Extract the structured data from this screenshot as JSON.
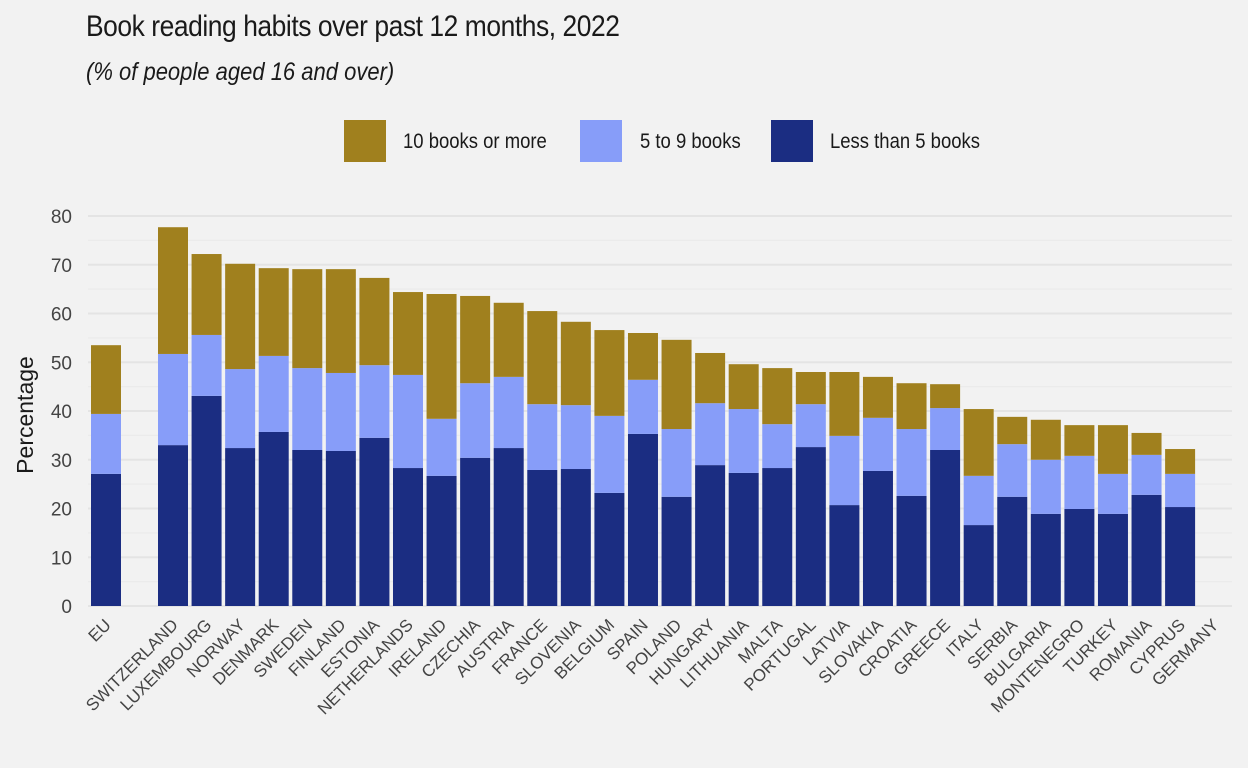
{
  "chart_data": {
    "type": "bar",
    "stacked": true,
    "title": "Book reading habits over past 12 months, 2022",
    "subtitle": "(% of people aged 16 and over)",
    "xlabel": "",
    "ylabel": "Percentage",
    "ylim": [
      0,
      80
    ],
    "yticks": [
      "0",
      "10",
      "20",
      "30",
      "40",
      "50",
      "60",
      "70",
      "80"
    ],
    "grid": true,
    "legend_position": "top",
    "categories": [
      "EU",
      "SWITZERLAND",
      "LUXEMBOURG",
      "NORWAY",
      "DENMARK",
      "SWEDEN",
      "FINLAND",
      "ESTONIA",
      "NETHERLANDS",
      "IRELAND",
      "CZECHIA",
      "AUSTRIA",
      "FRANCE",
      "SLOVENIA",
      "BELGIUM",
      "SPAIN",
      "POLAND",
      "HUNGARY",
      "LITHUANIA",
      "MALTA",
      "PORTUGAL",
      "LATVIA",
      "SLOVAKIA",
      "CROATIA",
      "GREECE",
      "ITALY",
      "SERBIA",
      "BULGARIA",
      "MONTENEGRO",
      "TURKEY",
      "ROMANIA",
      "CYPRUS",
      "GERMANY"
    ],
    "category_gap_after_first": true,
    "series": [
      {
        "name": "Less than 5 books",
        "color": "#1B2D82",
        "values": [
          27.1,
          33.0,
          43.1,
          32.4,
          35.7,
          32.0,
          31.8,
          34.5,
          28.3,
          26.7,
          30.4,
          32.4,
          27.9,
          28.1,
          23.2,
          35.3,
          22.4,
          28.9,
          27.3,
          28.3,
          32.6,
          20.7,
          27.7,
          22.6,
          32.0,
          16.6,
          22.4,
          18.9,
          19.9,
          18.9,
          22.8,
          20.3,
          null
        ]
      },
      {
        "name": "5 to 9 books",
        "color": "#879DF9",
        "values": [
          12.3,
          18.7,
          12.5,
          16.2,
          15.6,
          16.8,
          16.0,
          14.9,
          19.1,
          11.7,
          15.3,
          14.6,
          13.5,
          13.1,
          15.8,
          11.1,
          13.9,
          12.7,
          13.1,
          9.0,
          8.8,
          14.2,
          10.9,
          13.7,
          8.6,
          10.1,
          10.8,
          11.1,
          10.9,
          8.2,
          8.2,
          6.8,
          null
        ]
      },
      {
        "name": "10 books or more",
        "color": "#A0801E",
        "values": [
          14.1,
          26.0,
          16.6,
          21.6,
          18.0,
          20.3,
          21.3,
          17.9,
          17.0,
          25.6,
          17.9,
          15.2,
          19.1,
          17.1,
          17.6,
          9.6,
          18.3,
          10.3,
          9.2,
          11.5,
          6.6,
          13.1,
          8.4,
          9.4,
          4.9,
          13.7,
          5.6,
          8.2,
          6.3,
          10.0,
          4.5,
          5.1,
          null
        ]
      }
    ],
    "legend_order": [
      "10 books or more",
      "5 to 9 books",
      "Less than 5 books"
    ]
  }
}
